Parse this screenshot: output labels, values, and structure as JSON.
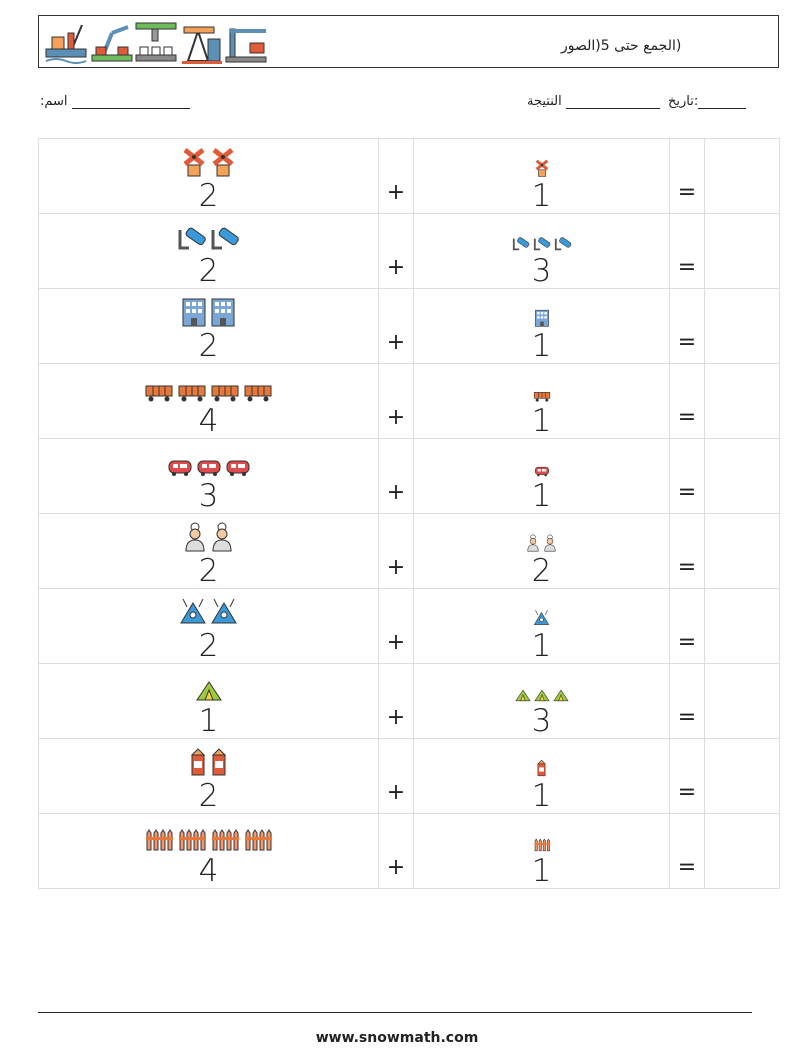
{
  "header": {
    "title": "(الجمع حتى 5(الصور",
    "logo_icons": [
      "offshore-rig-icon",
      "robot-arm-icon",
      "press-machine-icon",
      "oil-pump-icon",
      "crane-icon"
    ]
  },
  "meta": {
    "date_label": ":تاريخ",
    "result_label": "النتيجة",
    "name_label": ":اسم"
  },
  "rows": [
    {
      "a": "2",
      "a_icon": "windmill-icon",
      "b": "1",
      "b_icon": "windmill-icon",
      "plus": "+",
      "equals": "="
    },
    {
      "a": "2",
      "a_icon": "pipe-icon",
      "b": "3",
      "b_icon": "pipe-icon",
      "plus": "+",
      "equals": "="
    },
    {
      "a": "2",
      "a_icon": "building-icon",
      "b": "1",
      "b_icon": "building-icon",
      "plus": "+",
      "equals": "="
    },
    {
      "a": "4",
      "a_icon": "freight-wagon-icon",
      "b": "1",
      "b_icon": "freight-wagon-icon",
      "plus": "+",
      "equals": "="
    },
    {
      "a": "3",
      "a_icon": "tram-icon",
      "b": "1",
      "b_icon": "tram-icon",
      "plus": "+",
      "equals": "="
    },
    {
      "a": "2",
      "a_icon": "chef-icon",
      "b": "2",
      "b_icon": "chef-icon",
      "plus": "+",
      "equals": "="
    },
    {
      "a": "2",
      "a_icon": "robot-icon",
      "b": "1",
      "b_icon": "robot-icon",
      "plus": "+",
      "equals": "="
    },
    {
      "a": "1",
      "a_icon": "tent-icon",
      "b": "3",
      "b_icon": "tent-icon",
      "plus": "+",
      "equals": "="
    },
    {
      "a": "2",
      "a_icon": "milk-carton-icon",
      "b": "1",
      "b_icon": "milk-carton-icon",
      "plus": "+",
      "equals": "="
    },
    {
      "a": "4",
      "a_icon": "fence-icon",
      "b": "1",
      "b_icon": "fence-icon",
      "plus": "+",
      "equals": "="
    }
  ],
  "footer": {
    "url": "www.snowmath.com"
  }
}
